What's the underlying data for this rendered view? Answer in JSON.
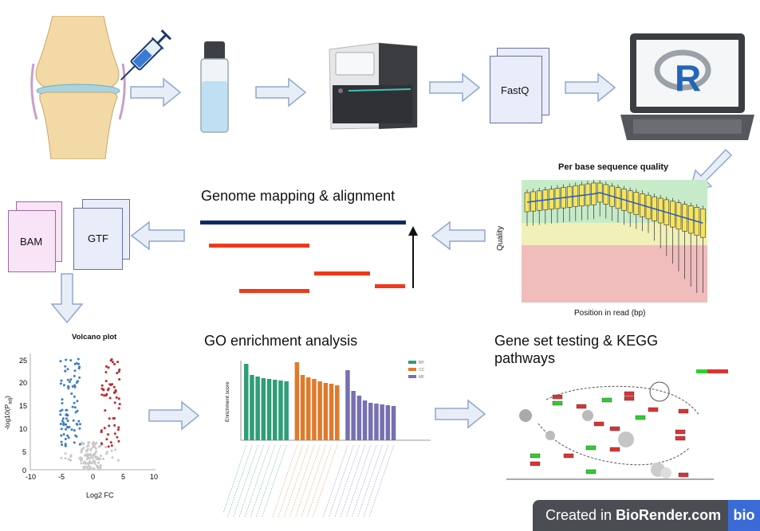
{
  "workflow": {
    "row1": {
      "fastq_label": "FastQ",
      "r_logo_letter": "R"
    },
    "mapping": {
      "title": "Genome mapping & alignment",
      "bam_label": "BAM",
      "gtf_label": "GTF"
    },
    "quality_plot": {
      "title": "Per base sequence quality",
      "xlabel": "Position in read (bp)",
      "ylabel": "Quality"
    },
    "volcano": {
      "title": "Volcano plot",
      "xlabel": "Log2 FC",
      "ylabel": "-log10(P",
      "ylabel_sub": "adj",
      "ylabel_close": ")",
      "x_ticks": [
        "-10",
        "-5",
        "0",
        "5",
        "10"
      ],
      "y_ticks": [
        "25",
        "20",
        "15",
        "10",
        "5",
        "0"
      ]
    },
    "go": {
      "title": "GO enrichment analysis",
      "ylabel": "Enrichment score",
      "legend": [
        "BP",
        "CC",
        "MF"
      ],
      "colors": [
        "#2e9e78",
        "#e07a2b",
        "#7570b3"
      ]
    },
    "kegg": {
      "title_line1": "Gene set testing & KEGG",
      "title_line2": "pathways"
    },
    "badge": {
      "prefix": "Created in ",
      "brand": "BioRender.com",
      "logo": "bio"
    }
  }
}
